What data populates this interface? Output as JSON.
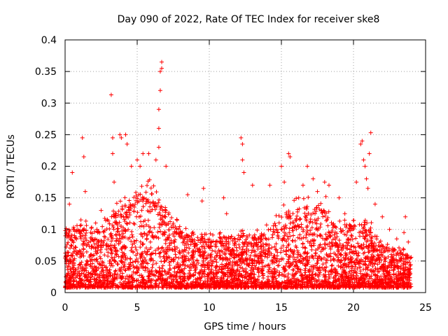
{
  "chart_data": {
    "type": "scatter",
    "title": "Day 090 of 2022, Rate Of TEC Index for receiver ske8",
    "xlabel": "GPS time / hours",
    "ylabel": "ROTI / TECUs",
    "xlim": [
      0,
      25
    ],
    "ylim": [
      0,
      0.4
    ],
    "xticks": [
      0,
      5,
      10,
      15,
      20,
      25
    ],
    "xtick_labels": [
      "0",
      "5",
      "10",
      "15",
      "20",
      "25"
    ],
    "yticks": [
      0,
      0.05,
      0.1,
      0.15,
      0.2,
      0.25,
      0.3,
      0.35,
      0.4
    ],
    "ytick_labels": [
      "0",
      "0.05",
      "0.1",
      "0.15",
      "0.2",
      "0.25",
      "0.3",
      "0.35",
      "0.4"
    ],
    "grid": true,
    "marker": "+",
    "color": "#ff0000",
    "series": [
      {
        "points": [
          [
            0.3,
            0.14
          ],
          [
            0.5,
            0.19
          ],
          [
            1.2,
            0.245
          ],
          [
            1.3,
            0.215
          ],
          [
            1.4,
            0.16
          ],
          [
            2.5,
            0.13
          ],
          [
            3.2,
            0.313
          ],
          [
            3.3,
            0.245
          ],
          [
            3.3,
            0.22
          ],
          [
            3.4,
            0.175
          ],
          [
            3.8,
            0.25
          ],
          [
            3.9,
            0.245
          ],
          [
            4.2,
            0.25
          ],
          [
            4.3,
            0.235
          ],
          [
            4.6,
            0.2
          ],
          [
            5.0,
            0.21
          ],
          [
            5.2,
            0.2
          ],
          [
            5.4,
            0.22
          ],
          [
            5.8,
            0.22
          ],
          [
            6.3,
            0.21
          ],
          [
            6.5,
            0.23
          ],
          [
            6.5,
            0.26
          ],
          [
            6.5,
            0.29
          ],
          [
            6.6,
            0.32
          ],
          [
            6.6,
            0.35
          ],
          [
            6.7,
            0.365
          ],
          [
            6.7,
            0.355
          ],
          [
            7.0,
            0.2
          ],
          [
            8.5,
            0.155
          ],
          [
            9.5,
            0.145
          ],
          [
            9.6,
            0.165
          ],
          [
            11.0,
            0.15
          ],
          [
            11.2,
            0.125
          ],
          [
            12.2,
            0.245
          ],
          [
            12.3,
            0.235
          ],
          [
            12.3,
            0.21
          ],
          [
            12.4,
            0.19
          ],
          [
            13.0,
            0.17
          ],
          [
            14.2,
            0.17
          ],
          [
            15.0,
            0.2
          ],
          [
            15.2,
            0.175
          ],
          [
            15.5,
            0.22
          ],
          [
            15.6,
            0.215
          ],
          [
            16.2,
            0.15
          ],
          [
            16.5,
            0.17
          ],
          [
            16.8,
            0.2
          ],
          [
            17.2,
            0.18
          ],
          [
            17.5,
            0.16
          ],
          [
            18.0,
            0.175
          ],
          [
            18.3,
            0.17
          ],
          [
            19.0,
            0.15
          ],
          [
            19.4,
            0.125
          ],
          [
            19.8,
            0.105
          ],
          [
            20.2,
            0.175
          ],
          [
            20.5,
            0.235
          ],
          [
            20.6,
            0.24
          ],
          [
            20.7,
            0.21
          ],
          [
            20.8,
            0.2
          ],
          [
            20.9,
            0.18
          ],
          [
            21.0,
            0.165
          ],
          [
            21.1,
            0.22
          ],
          [
            21.2,
            0.253
          ],
          [
            21.5,
            0.14
          ],
          [
            22.0,
            0.12
          ],
          [
            22.5,
            0.1
          ],
          [
            23.0,
            0.085
          ],
          [
            23.5,
            0.095
          ],
          [
            23.6,
            0.12
          ],
          [
            23.8,
            0.08
          ]
        ],
        "density_profile": {
          "hours": [
            0,
            1,
            2,
            3,
            4,
            5,
            6,
            7,
            8,
            9,
            10,
            11,
            12,
            13,
            14,
            15,
            16,
            17,
            18,
            19,
            20,
            21,
            22,
            23,
            24
          ],
          "envelope": [
            0.09,
            0.1,
            0.09,
            0.11,
            0.13,
            0.15,
            0.15,
            0.13,
            0.09,
            0.08,
            0.08,
            0.08,
            0.085,
            0.08,
            0.09,
            0.12,
            0.13,
            0.13,
            0.13,
            0.1,
            0.1,
            0.1,
            0.07,
            0.06,
            0.06
          ]
        }
      }
    ]
  }
}
